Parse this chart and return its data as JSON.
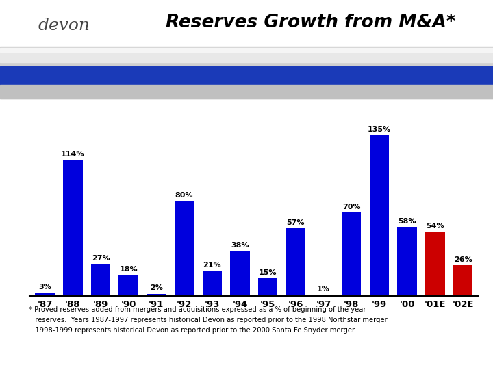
{
  "categories": [
    "'87",
    "'88",
    "'89",
    "'90",
    "'91",
    "'92",
    "'93",
    "'94",
    "'95",
    "'96",
    "'97",
    "'98",
    "'99",
    "'00",
    "'01E",
    "'02E"
  ],
  "values": [
    3,
    114,
    27,
    18,
    2,
    80,
    21,
    38,
    15,
    57,
    1,
    70,
    135,
    58,
    54,
    26
  ],
  "bar_colors": [
    "#0000dd",
    "#0000dd",
    "#0000dd",
    "#0000dd",
    "#0000dd",
    "#0000dd",
    "#0000dd",
    "#0000dd",
    "#0000dd",
    "#0000dd",
    "#0000dd",
    "#0000dd",
    "#0000dd",
    "#0000dd",
    "#cc0000",
    "#cc0000"
  ],
  "labels": [
    "3%",
    "114%",
    "27%",
    "18%",
    "2%",
    "80%",
    "21%",
    "38%",
    "15%",
    "57%",
    "1%",
    "70%",
    "135%",
    "58%",
    "54%",
    "26%"
  ],
  "title": "Reserves Growth from M&A*",
  "ylim": [
    0,
    155
  ],
  "footnote_line1": "* Proved reserves added from mergers and acquisitions expressed as a % of beginning of the year",
  "footnote_line2": "   reserves.  Years 1987-1997 represents historical Devon as reported prior to the 1998 Northstar merger.",
  "footnote_line3": "   1998-1999 represents historical Devon as reported prior to the 2000 Santa Fe Snyder merger."
}
